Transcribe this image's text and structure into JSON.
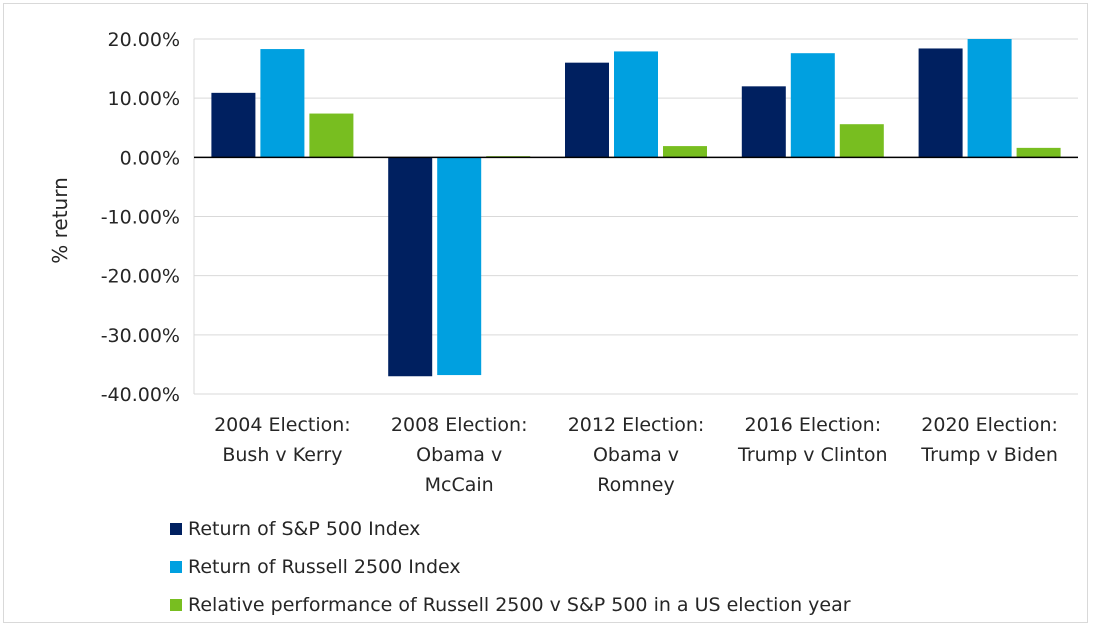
{
  "chart_data": {
    "type": "bar",
    "ylabel": "% return",
    "ylim": [
      -40,
      20
    ],
    "yticks": [
      {
        "value": 20,
        "label": "20.00%"
      },
      {
        "value": 10,
        "label": "10.00%"
      },
      {
        "value": 0,
        "label": "0.00%"
      },
      {
        "value": -10,
        "label": "-10.00%"
      },
      {
        "value": -20,
        "label": "-20.00%"
      },
      {
        "value": -30,
        "label": "-30.00%"
      },
      {
        "value": -40,
        "label": "-40.00%"
      }
    ],
    "grid": true,
    "legend_position": "bottom",
    "categories": [
      [
        "2004 Election:",
        "Bush v Kerry"
      ],
      [
        "2008 Election:",
        "Obama v",
        "McCain"
      ],
      [
        "2012 Election:",
        "Obama v",
        "Romney"
      ],
      [
        "2016 Election:",
        "Trump v Clinton"
      ],
      [
        "2020 Election:",
        "Trump v Biden"
      ]
    ],
    "series": [
      {
        "name": "Return of S&P 500 Index",
        "color": "#002060",
        "values": [
          10.9,
          -37.0,
          16.0,
          12.0,
          18.4
        ]
      },
      {
        "name": "Return of Russell 2500 Index",
        "color": "#00a0e0",
        "values": [
          18.3,
          -36.8,
          17.9,
          17.6,
          20.0
        ]
      },
      {
        "name": "Relative performance of Russell 2500 v S&P 500 in a US election year",
        "color": "#78be20",
        "values": [
          7.4,
          0.2,
          1.9,
          5.6,
          1.6
        ]
      }
    ]
  }
}
